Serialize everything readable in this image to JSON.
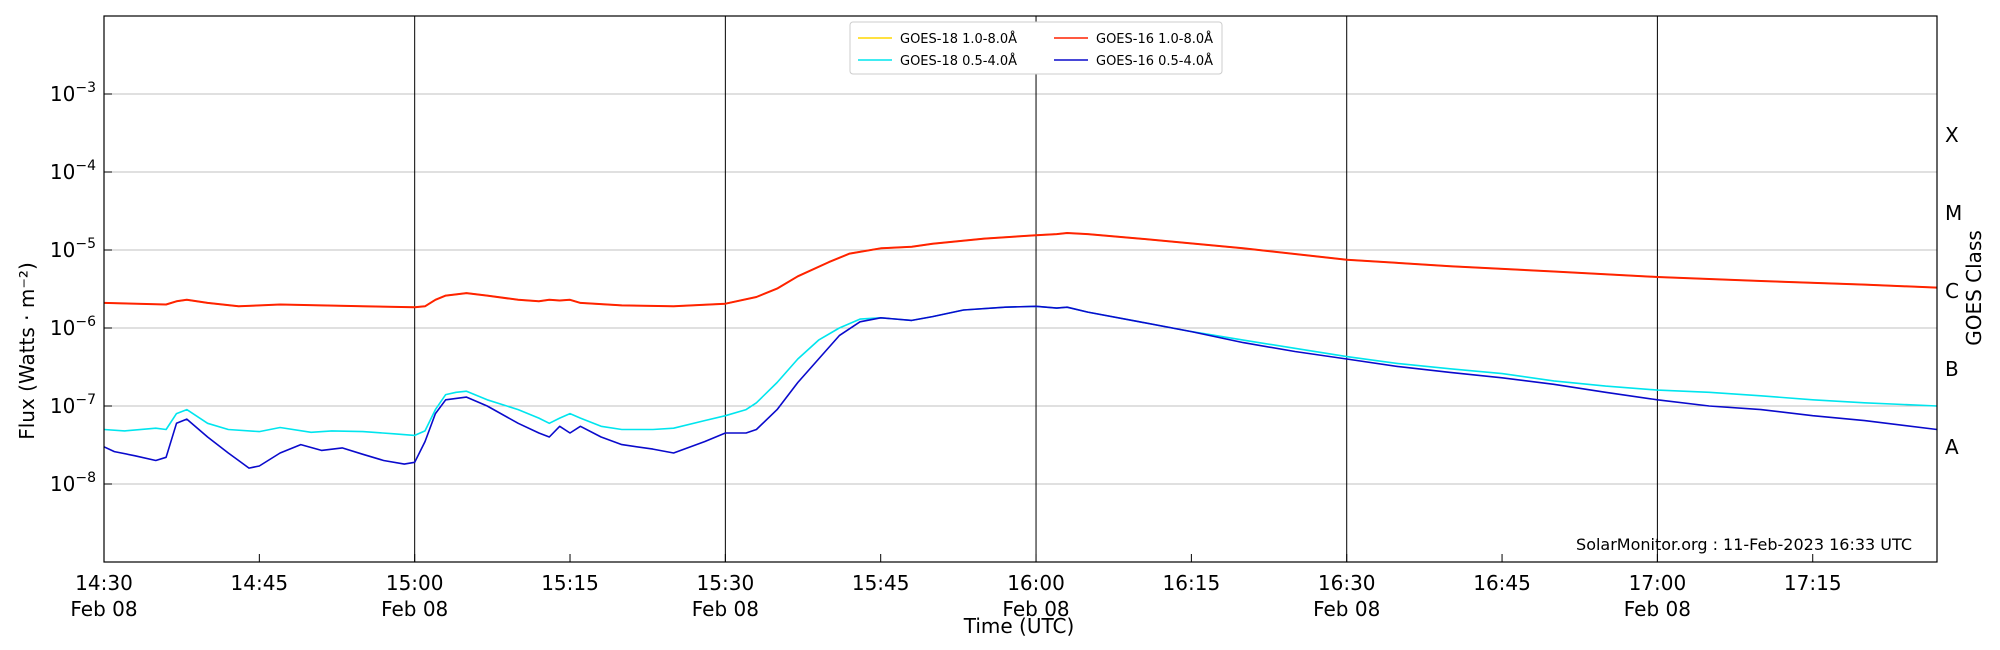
{
  "chart_data": {
    "type": "line",
    "title": "",
    "xlabel": "Time (UTC)",
    "ylabel": "Flux (Watts · m⁻²)",
    "y2label": "GOES Class",
    "yscale": "log",
    "ylim": [
      1e-09,
      0.01
    ],
    "xlim": [
      "2023-02-08 14:30",
      "2023-02-08 17:27"
    ],
    "grid": "horizontal",
    "legend_position": "top-center",
    "watermark": "SolarMonitor.org : 11-Feb-2023 16:33 UTC",
    "y_ticks": [
      {
        "value": 1e-08,
        "base": "10",
        "exp": "−8"
      },
      {
        "value": 1e-07,
        "base": "10",
        "exp": "−7"
      },
      {
        "value": 1e-06,
        "base": "10",
        "exp": "−6"
      },
      {
        "value": 1e-05,
        "base": "10",
        "exp": "−5"
      },
      {
        "value": 0.0001,
        "base": "10",
        "exp": "−4"
      },
      {
        "value": 0.001,
        "base": "10",
        "exp": "−3"
      }
    ],
    "x_ticks": [
      {
        "time": "14:30",
        "label": "14:30",
        "date": "Feb 08",
        "major": true
      },
      {
        "time": "14:45",
        "label": "14:45",
        "date": "",
        "major": false
      },
      {
        "time": "15:00",
        "label": "15:00",
        "date": "Feb 08",
        "major": true
      },
      {
        "time": "15:15",
        "label": "15:15",
        "date": "",
        "major": false
      },
      {
        "time": "15:30",
        "label": "15:30",
        "date": "Feb 08",
        "major": true
      },
      {
        "time": "15:45",
        "label": "15:45",
        "date": "",
        "major": false
      },
      {
        "time": "16:00",
        "label": "16:00",
        "date": "Feb 08",
        "major": true
      },
      {
        "time": "16:15",
        "label": "16:15",
        "date": "",
        "major": false
      },
      {
        "time": "16:30",
        "label": "16:30",
        "date": "Feb 08",
        "major": true
      },
      {
        "time": "16:45",
        "label": "16:45",
        "date": "",
        "major": false
      },
      {
        "time": "17:00",
        "label": "17:00",
        "date": "Feb 08",
        "major": true
      },
      {
        "time": "17:15",
        "label": "17:15",
        "date": "",
        "major": false
      }
    ],
    "goes_classes": [
      {
        "label": "X",
        "value": 0.0003
      },
      {
        "label": "M",
        "value": 3e-05
      },
      {
        "label": "C",
        "value": 3e-06
      },
      {
        "label": "B",
        "value": 3e-07
      },
      {
        "label": "A",
        "value": 3e-08
      }
    ],
    "series": [
      {
        "name": "GOES-18 1.0-8.0Å",
        "color": "#ffd700",
        "x": [
          "14:30",
          "14:36",
          "14:37",
          "14:38",
          "14:40",
          "14:43",
          "14:47",
          "14:55",
          "15:00",
          "15:01",
          "15:02",
          "15:03",
          "15:04",
          "15:05",
          "15:07",
          "15:10",
          "15:12",
          "15:13",
          "15:14",
          "15:15",
          "15:16",
          "15:20",
          "15:25",
          "15:30",
          "15:33",
          "15:35",
          "15:37",
          "15:40",
          "15:42",
          "15:45",
          "15:48",
          "15:50",
          "15:55",
          "16:00",
          "16:02",
          "16:03",
          "16:05",
          "16:10",
          "16:20",
          "16:30",
          "16:40",
          "16:50",
          "17:00",
          "17:10",
          "17:20",
          "17:27"
        ],
        "values": [
          2.1e-06,
          2e-06,
          2.2e-06,
          2.3e-06,
          2.1e-06,
          1.9e-06,
          2e-06,
          1.9e-06,
          1.85e-06,
          1.9e-06,
          2.3e-06,
          2.6e-06,
          2.7e-06,
          2.8e-06,
          2.6e-06,
          2.3e-06,
          2.2e-06,
          2.3e-06,
          2.25e-06,
          2.3e-06,
          2.1e-06,
          1.95e-06,
          1.9e-06,
          2.05e-06,
          2.5e-06,
          3.2e-06,
          4.6e-06,
          7e-06,
          9e-06,
          1.05e-05,
          1.1e-05,
          1.2e-05,
          1.4e-05,
          1.55e-05,
          1.6e-05,
          1.65e-05,
          1.6e-05,
          1.4e-05,
          1.05e-05,
          7.5e-06,
          6.2e-06,
          5.3e-06,
          4.5e-06,
          4e-06,
          3.6e-06,
          3.3e-06
        ]
      },
      {
        "name": "GOES-18 0.5-4.0Å",
        "color": "#00e5ee",
        "x": [
          "14:30",
          "14:32",
          "14:35",
          "14:36",
          "14:37",
          "14:38",
          "14:40",
          "14:42",
          "14:45",
          "14:47",
          "14:50",
          "14:52",
          "14:55",
          "14:58",
          "15:00",
          "15:01",
          "15:02",
          "15:03",
          "15:04",
          "15:05",
          "15:07",
          "15:10",
          "15:12",
          "15:13",
          "15:14",
          "15:15",
          "15:16",
          "15:18",
          "15:20",
          "15:23",
          "15:25",
          "15:28",
          "15:30",
          "15:32",
          "15:33",
          "15:35",
          "15:37",
          "15:39",
          "15:41",
          "15:43",
          "15:45",
          "15:48",
          "15:50",
          "15:53",
          "15:57",
          "16:00",
          "16:02",
          "16:03",
          "16:05",
          "16:10",
          "16:15",
          "16:20",
          "16:25",
          "16:30",
          "16:35",
          "16:40",
          "16:45",
          "16:50",
          "16:55",
          "17:00",
          "17:05",
          "17:10",
          "17:15",
          "17:20",
          "17:27"
        ],
        "values": [
          5e-08,
          4.8e-08,
          5.2e-08,
          5e-08,
          8e-08,
          9e-08,
          6e-08,
          5e-08,
          4.7e-08,
          5.3e-08,
          4.6e-08,
          4.8e-08,
          4.7e-08,
          4.4e-08,
          4.2e-08,
          4.8e-08,
          9e-08,
          1.4e-07,
          1.5e-07,
          1.55e-07,
          1.2e-07,
          9e-08,
          7e-08,
          6e-08,
          7e-08,
          8e-08,
          7e-08,
          5.5e-08,
          5e-08,
          5e-08,
          5.2e-08,
          6.5e-08,
          7.5e-08,
          9e-08,
          1.1e-07,
          2e-07,
          4e-07,
          7e-07,
          1e-06,
          1.3e-06,
          1.35e-06,
          1.25e-06,
          1.4e-06,
          1.7e-06,
          1.85e-06,
          1.9e-06,
          1.8e-06,
          1.85e-06,
          1.6e-06,
          1.2e-06,
          9e-07,
          7e-07,
          5.5e-07,
          4.3e-07,
          3.5e-07,
          3e-07,
          2.6e-07,
          2.1e-07,
          1.8e-07,
          1.6e-07,
          1.5e-07,
          1.35e-07,
          1.2e-07,
          1.1e-07,
          1e-07
        ]
      },
      {
        "name": "GOES-16 1.0-8.0Å",
        "color": "#ff2200",
        "x": [
          "14:30",
          "14:36",
          "14:37",
          "14:38",
          "14:40",
          "14:43",
          "14:47",
          "14:55",
          "15:00",
          "15:01",
          "15:02",
          "15:03",
          "15:04",
          "15:05",
          "15:07",
          "15:10",
          "15:12",
          "15:13",
          "15:14",
          "15:15",
          "15:16",
          "15:20",
          "15:25",
          "15:30",
          "15:33",
          "15:35",
          "15:37",
          "15:40",
          "15:42",
          "15:45",
          "15:48",
          "15:50",
          "15:55",
          "16:00",
          "16:02",
          "16:03",
          "16:05",
          "16:10",
          "16:20",
          "16:30",
          "16:40",
          "16:50",
          "17:00",
          "17:10",
          "17:20",
          "17:27"
        ],
        "values": [
          2.1e-06,
          2e-06,
          2.2e-06,
          2.3e-06,
          2.1e-06,
          1.9e-06,
          2e-06,
          1.9e-06,
          1.85e-06,
          1.9e-06,
          2.3e-06,
          2.6e-06,
          2.7e-06,
          2.8e-06,
          2.6e-06,
          2.3e-06,
          2.2e-06,
          2.3e-06,
          2.25e-06,
          2.3e-06,
          2.1e-06,
          1.95e-06,
          1.9e-06,
          2.05e-06,
          2.5e-06,
          3.2e-06,
          4.6e-06,
          7e-06,
          9e-06,
          1.05e-05,
          1.1e-05,
          1.2e-05,
          1.4e-05,
          1.55e-05,
          1.6e-05,
          1.65e-05,
          1.6e-05,
          1.4e-05,
          1.05e-05,
          7.5e-06,
          6.2e-06,
          5.3e-06,
          4.5e-06,
          4e-06,
          3.6e-06,
          3.3e-06
        ]
      },
      {
        "name": "GOES-16 0.5-4.0Å",
        "color": "#0a0acc",
        "x": [
          "14:30",
          "14:31",
          "14:33",
          "14:35",
          "14:36",
          "14:37",
          "14:38",
          "14:40",
          "14:42",
          "14:43",
          "14:44",
          "14:45",
          "14:47",
          "14:49",
          "14:51",
          "14:53",
          "14:55",
          "14:57",
          "14:59",
          "15:00",
          "15:01",
          "15:02",
          "15:03",
          "15:04",
          "15:05",
          "15:07",
          "15:10",
          "15:12",
          "15:13",
          "15:14",
          "15:15",
          "15:16",
          "15:18",
          "15:20",
          "15:23",
          "15:25",
          "15:28",
          "15:30",
          "15:32",
          "15:33",
          "15:35",
          "15:37",
          "15:39",
          "15:41",
          "15:43",
          "15:45",
          "15:48",
          "15:50",
          "15:53",
          "15:57",
          "16:00",
          "16:02",
          "16:03",
          "16:05",
          "16:10",
          "16:15",
          "16:20",
          "16:25",
          "16:30",
          "16:35",
          "16:40",
          "16:45",
          "16:50",
          "16:55",
          "17:00",
          "17:05",
          "17:10",
          "17:15",
          "17:20",
          "17:27"
        ],
        "values": [
          3e-08,
          2.6e-08,
          2.3e-08,
          2e-08,
          2.2e-08,
          6e-08,
          6.8e-08,
          4e-08,
          2.5e-08,
          2e-08,
          1.6e-08,
          1.7e-08,
          2.5e-08,
          3.2e-08,
          2.7e-08,
          2.9e-08,
          2.4e-08,
          2e-08,
          1.8e-08,
          1.9e-08,
          3.5e-08,
          8e-08,
          1.2e-07,
          1.25e-07,
          1.3e-07,
          1e-07,
          6e-08,
          4.5e-08,
          4e-08,
          5.5e-08,
          4.5e-08,
          5.5e-08,
          4e-08,
          3.2e-08,
          2.8e-08,
          2.5e-08,
          3.5e-08,
          4.5e-08,
          4.5e-08,
          5e-08,
          9e-08,
          2e-07,
          4e-07,
          8e-07,
          1.2e-06,
          1.35e-06,
          1.25e-06,
          1.4e-06,
          1.7e-06,
          1.85e-06,
          1.9e-06,
          1.8e-06,
          1.85e-06,
          1.6e-06,
          1.2e-06,
          9e-07,
          6.5e-07,
          5e-07,
          4e-07,
          3.2e-07,
          2.7e-07,
          2.3e-07,
          1.9e-07,
          1.5e-07,
          1.2e-07,
          1e-07,
          9e-08,
          7.5e-08,
          6.5e-08,
          5e-08
        ]
      }
    ]
  }
}
